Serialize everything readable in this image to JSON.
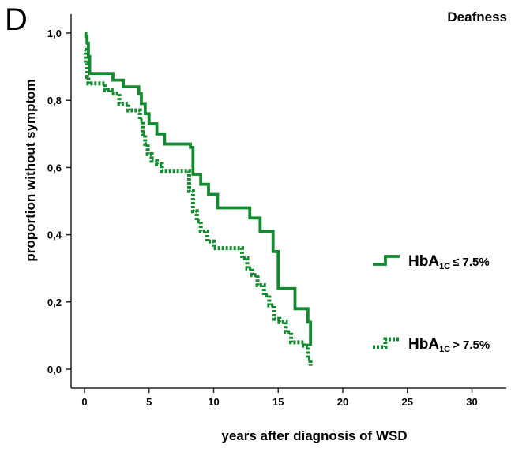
{
  "panel_letter": "D",
  "chart_data": {
    "type": "line",
    "title": "Deafness",
    "xlabel": "years after diagnosis of WSD",
    "ylabel": "proportion without symptom",
    "xlim": [
      0,
      32
    ],
    "ylim": [
      0,
      1.05
    ],
    "x_ticks": [
      0,
      5,
      10,
      15,
      20,
      25,
      30
    ],
    "x_tick_labels": [
      "0",
      "5",
      "10",
      "15",
      "20",
      "25",
      "30"
    ],
    "y_ticks": [
      0,
      0.2,
      0.4,
      0.6,
      0.8,
      1.0
    ],
    "y_tick_labels": [
      "0,0",
      "0,2",
      "0,4",
      "0,6",
      "0,8",
      "1,0"
    ],
    "grid": false,
    "legend_position": "right",
    "series": [
      {
        "name_main": "HbA",
        "name_sub": "1C",
        "name_rest": "≤ 7.5%",
        "color": "#148a30",
        "style": "solid",
        "x": [
          0,
          0.1,
          0.2,
          0.3,
          0.4,
          1.7,
          2.2,
          3.0,
          4.2,
          4.4,
          4.7,
          5.0,
          5.6,
          6.2,
          8.2,
          8.4,
          9.0,
          9.6,
          10.3,
          12.8,
          13.6,
          14.6,
          15.0,
          16.3,
          17.3,
          17.5
        ],
        "y": [
          1.0,
          0.99,
          0.97,
          0.93,
          0.88,
          0.88,
          0.86,
          0.84,
          0.82,
          0.79,
          0.76,
          0.73,
          0.7,
          0.67,
          0.66,
          0.58,
          0.55,
          0.52,
          0.48,
          0.45,
          0.41,
          0.35,
          0.24,
          0.18,
          0.14,
          0.07
        ]
      },
      {
        "name_main": "HbA",
        "name_sub": "1C",
        "name_rest": "> 7.5%",
        "color": "#148a30",
        "style": "dashed",
        "x": [
          0,
          0.1,
          0.2,
          0.3,
          1.1,
          1.6,
          2.1,
          2.7,
          3.4,
          4.1,
          4.3,
          4.5,
          4.7,
          4.9,
          5.2,
          5.6,
          6.0,
          7.8,
          8.1,
          8.4,
          8.7,
          9.0,
          9.5,
          10.0,
          11.7,
          12.2,
          12.6,
          13.0,
          13.4,
          13.9,
          14.3,
          14.7,
          15.1,
          15.6,
          16.0,
          17.0,
          17.3,
          17.5
        ],
        "y": [
          0.95,
          0.91,
          0.87,
          0.85,
          0.85,
          0.83,
          0.82,
          0.79,
          0.77,
          0.77,
          0.74,
          0.7,
          0.67,
          0.64,
          0.62,
          0.61,
          0.59,
          0.59,
          0.53,
          0.47,
          0.44,
          0.41,
          0.38,
          0.36,
          0.36,
          0.33,
          0.3,
          0.28,
          0.25,
          0.22,
          0.19,
          0.15,
          0.14,
          0.11,
          0.08,
          0.07,
          0.03,
          0.01
        ]
      }
    ]
  }
}
